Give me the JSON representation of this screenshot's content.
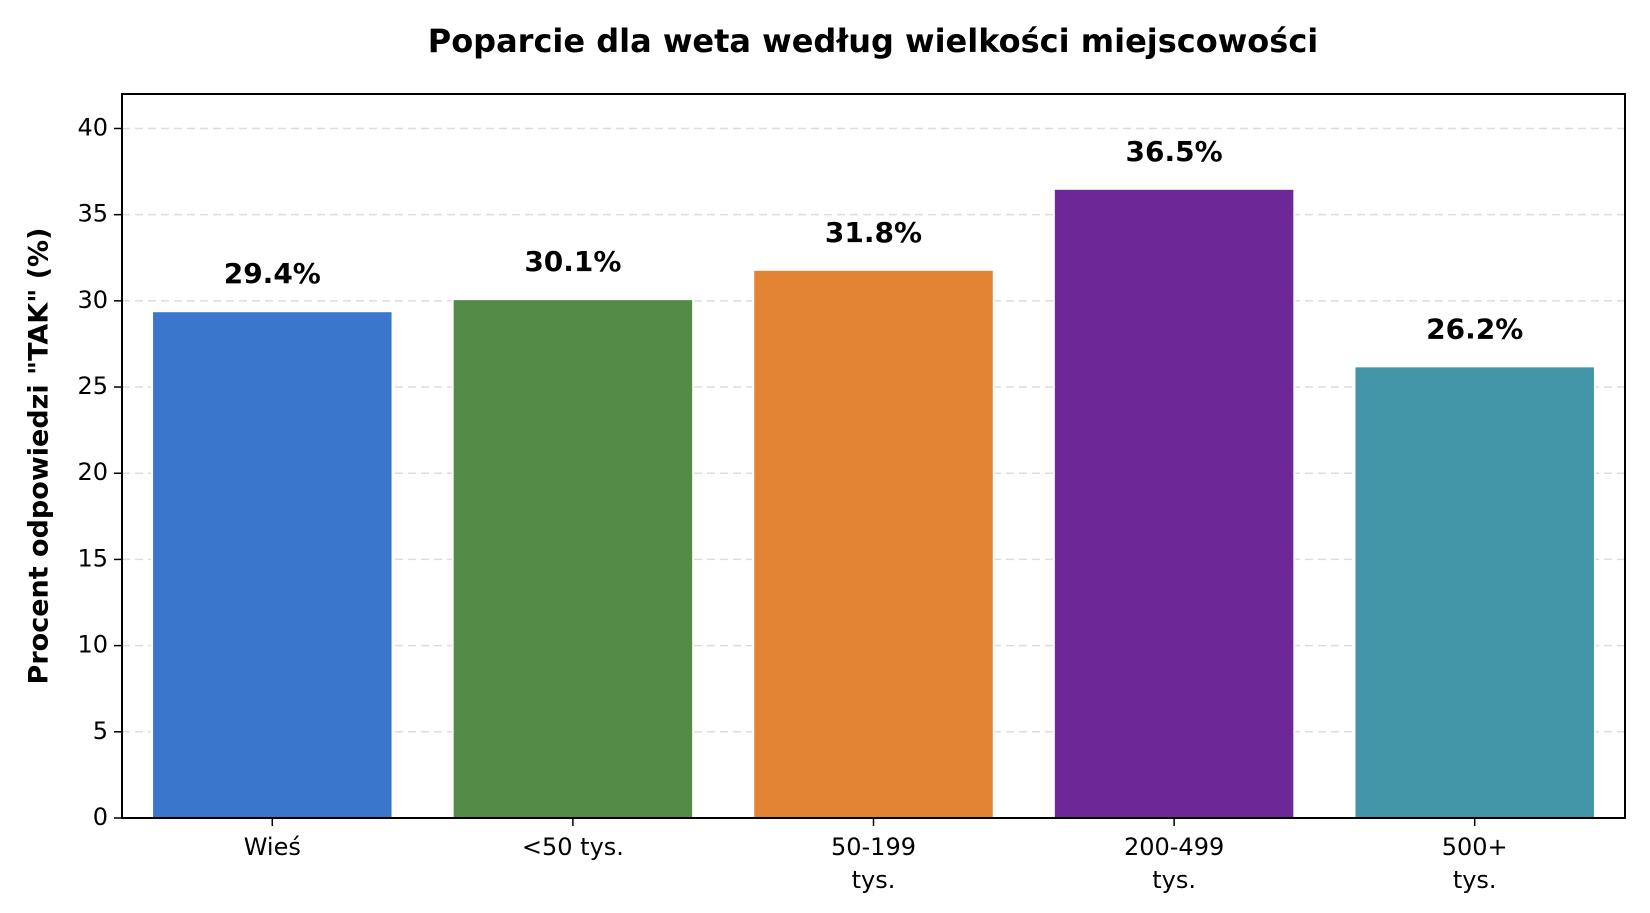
{
  "chart_data": {
    "type": "bar",
    "title": "Poparcie dla weta według wielkości miejscowości",
    "ylabel": "Procent odpowiedzi \"TAK\" (%)",
    "categories": [
      "Wieś",
      "<50 tys.",
      "50-199\ntys.",
      "200-499\ntys.",
      "500+\ntys."
    ],
    "values": [
      29.4,
      30.1,
      31.8,
      36.5,
      26.2
    ],
    "value_labels": [
      "29.4%",
      "30.1%",
      "31.8%",
      "36.5%",
      "26.2%"
    ],
    "colors": [
      "#3a76cc",
      "#528c47",
      "#e28233",
      "#6e2796",
      "#4395a8"
    ],
    "ylim": [
      0,
      42
    ],
    "yticks": [
      0,
      5,
      10,
      15,
      20,
      25,
      30,
      35,
      40
    ],
    "grid": true
  }
}
